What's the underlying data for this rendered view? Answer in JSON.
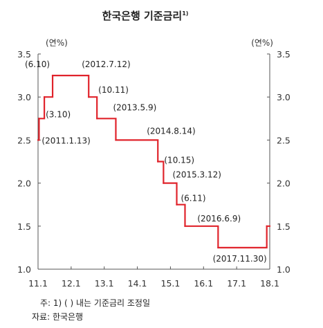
{
  "chart_data": {
    "type": "line",
    "title": "한국은행 기준금리",
    "title_footnote": "1)",
    "ylabel_left": "(연%)",
    "ylabel_right": "(연%)",
    "ylim": [
      1.0,
      3.5
    ],
    "yticks": [
      "1.0",
      "1.5",
      "2.0",
      "2.5",
      "3.0",
      "3.5"
    ],
    "xlim": [
      2011.0,
      2018.0
    ],
    "xticks": [
      {
        "x": 2011.0,
        "label": "11.1"
      },
      {
        "x": 2012.0,
        "label": "12.1"
      },
      {
        "x": 2013.0,
        "label": "13.1"
      },
      {
        "x": 2014.0,
        "label": "14.1"
      },
      {
        "x": 2015.0,
        "label": "15.1"
      },
      {
        "x": 2016.0,
        "label": "16.1"
      },
      {
        "x": 2017.0,
        "label": "17.1"
      },
      {
        "x": 2018.0,
        "label": "18.1"
      }
    ],
    "grid": false,
    "series": [
      {
        "color": "#e0232b",
        "points": [
          {
            "date": "2011.1.1",
            "x": 2011.0,
            "y": 2.5
          },
          {
            "date": "2011.1.13",
            "x": 2011.03,
            "y": 2.75
          },
          {
            "date": "2011.3.10",
            "x": 2011.19,
            "y": 3.0
          },
          {
            "date": "2011.6.10",
            "x": 2011.44,
            "y": 3.25
          },
          {
            "date": "2012.7.12",
            "x": 2012.53,
            "y": 3.0
          },
          {
            "date": "2012.10.11",
            "x": 2012.78,
            "y": 2.75
          },
          {
            "date": "2013.5.9",
            "x": 2013.35,
            "y": 2.5
          },
          {
            "date": "2014.8.14",
            "x": 2014.62,
            "y": 2.25
          },
          {
            "date": "2014.10.15",
            "x": 2014.79,
            "y": 2.0
          },
          {
            "date": "2015.3.12",
            "x": 2015.19,
            "y": 1.75
          },
          {
            "date": "2015.6.11",
            "x": 2015.44,
            "y": 1.5
          },
          {
            "date": "2016.6.9",
            "x": 2016.44,
            "y": 1.25
          },
          {
            "date": "2017.11.30",
            "x": 2017.91,
            "y": 1.5
          },
          {
            "date": "2018.1.1",
            "x": 2018.0,
            "y": 1.5
          }
        ]
      }
    ],
    "annotations": [
      {
        "text": "(6.10)",
        "x": 2011.44,
        "y": 3.25,
        "anchor": "end",
        "dx": -4,
        "dy": -12
      },
      {
        "text": "(2012.7.12)",
        "x": 2012.53,
        "y": 3.25,
        "anchor": "start",
        "dx": -10,
        "dy": -12
      },
      {
        "text": "(10.11)",
        "x": 2012.78,
        "y": 3.0,
        "anchor": "start",
        "dx": 2,
        "dy": -6
      },
      {
        "text": "(3.10)",
        "x": 2011.19,
        "y": 2.75,
        "anchor": "start",
        "dx": 2,
        "dy": -2
      },
      {
        "text": "(2013.5.9)",
        "x": 2013.35,
        "y": 2.75,
        "anchor": "start",
        "dx": -4,
        "dy": -12
      },
      {
        "text": "(2011.1.13)",
        "x": 2011.03,
        "y": 2.5,
        "anchor": "start",
        "dx": 4,
        "dy": 5
      },
      {
        "text": "(2014.8.14)",
        "x": 2014.62,
        "y": 2.5,
        "anchor": "start",
        "dx": -16,
        "dy": -9
      },
      {
        "text": "(10.15)",
        "x": 2014.79,
        "y": 2.25,
        "anchor": "start",
        "dx": 1,
        "dy": 2
      },
      {
        "text": "(2015.3.12)",
        "x": 2015.19,
        "y": 2.0,
        "anchor": "start",
        "dx": -6,
        "dy": -8
      },
      {
        "text": "(6.11)",
        "x": 2015.44,
        "y": 1.75,
        "anchor": "start",
        "dx": -6,
        "dy": -5
      },
      {
        "text": "(2016.6.9)",
        "x": 2016.44,
        "y": 1.5,
        "anchor": "start",
        "dx": -30,
        "dy": -7
      },
      {
        "text": "(2017.11.30)",
        "x": 2017.91,
        "y": 1.25,
        "anchor": "end",
        "dx": 0,
        "dy": 20
      }
    ]
  },
  "notes": {
    "footnote": "주: 1) (   ) 내는 기준금리 조정일",
    "source": "자료: 한국은행"
  }
}
